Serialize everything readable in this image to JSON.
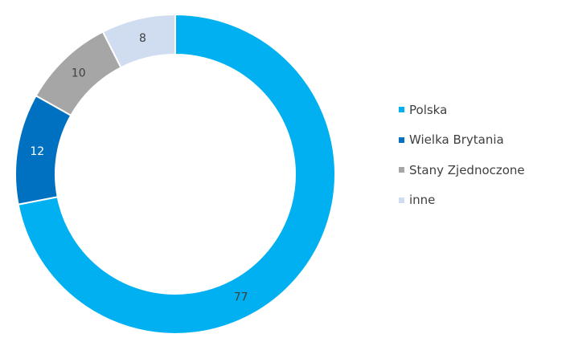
{
  "chart_data": {
    "type": "pie",
    "donut": true,
    "title": "",
    "legend_position": "right",
    "series": [
      {
        "name": "Polska",
        "value": 77,
        "color": "#00b0f0",
        "label_color": "#404040"
      },
      {
        "name": "Wielka Brytania",
        "value": 12,
        "color": "#0070c0",
        "label_color": "#ffffff"
      },
      {
        "name": "Stany Zjednoczone",
        "value": 10,
        "color": "#a6a6a6",
        "label_color": "#404040"
      },
      {
        "name": "inne",
        "value": 8,
        "color": "#d0dcf0",
        "label_color": "#404040"
      }
    ]
  }
}
